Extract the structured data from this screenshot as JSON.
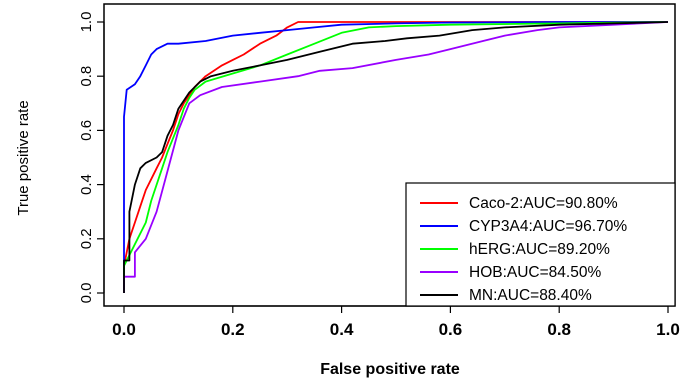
{
  "chart_data": {
    "type": "line",
    "title": "",
    "xlabel": "False positive rate",
    "ylabel": "True positive rate",
    "xlim": [
      0,
      1
    ],
    "ylim": [
      0,
      1
    ],
    "x_ticks": [
      "0.0",
      "0.2",
      "0.4",
      "0.6",
      "0.8",
      "1.0"
    ],
    "y_ticks": [
      "0.0",
      "0.2",
      "0.4",
      "0.6",
      "0.8",
      "1.0"
    ],
    "grid": false,
    "legend_position": "bottom-right",
    "series": [
      {
        "name": "Caco-2:AUC=90.80%",
        "color": "#ff0000",
        "points": [
          [
            0,
            0
          ],
          [
            0,
            0.1
          ],
          [
            0.01,
            0.2
          ],
          [
            0.02,
            0.26
          ],
          [
            0.03,
            0.32
          ],
          [
            0.04,
            0.38
          ],
          [
            0.05,
            0.42
          ],
          [
            0.06,
            0.46
          ],
          [
            0.07,
            0.5
          ],
          [
            0.08,
            0.55
          ],
          [
            0.09,
            0.6
          ],
          [
            0.1,
            0.66
          ],
          [
            0.11,
            0.7
          ],
          [
            0.12,
            0.73
          ],
          [
            0.13,
            0.76
          ],
          [
            0.15,
            0.8
          ],
          [
            0.18,
            0.84
          ],
          [
            0.2,
            0.86
          ],
          [
            0.22,
            0.88
          ],
          [
            0.25,
            0.92
          ],
          [
            0.28,
            0.95
          ],
          [
            0.3,
            0.98
          ],
          [
            0.32,
            1.0
          ],
          [
            0.6,
            1.0
          ],
          [
            1.0,
            1.0
          ]
        ]
      },
      {
        "name": "CYP3A4:AUC=96.70%",
        "color": "#0000ff",
        "points": [
          [
            0,
            0
          ],
          [
            0,
            0.65
          ],
          [
            0.005,
            0.75
          ],
          [
            0.02,
            0.77
          ],
          [
            0.03,
            0.8
          ],
          [
            0.04,
            0.84
          ],
          [
            0.05,
            0.88
          ],
          [
            0.06,
            0.9
          ],
          [
            0.08,
            0.92
          ],
          [
            0.1,
            0.92
          ],
          [
            0.15,
            0.93
          ],
          [
            0.2,
            0.95
          ],
          [
            0.25,
            0.96
          ],
          [
            0.3,
            0.97
          ],
          [
            0.35,
            0.98
          ],
          [
            0.4,
            0.99
          ],
          [
            0.5,
            0.995
          ],
          [
            0.6,
            0.998
          ],
          [
            0.8,
            1.0
          ],
          [
            1.0,
            1.0
          ]
        ]
      },
      {
        "name": "hERG:AUC=89.20%",
        "color": "#00ff00",
        "points": [
          [
            0,
            0
          ],
          [
            0,
            0.1
          ],
          [
            0.02,
            0.18
          ],
          [
            0.04,
            0.26
          ],
          [
            0.05,
            0.34
          ],
          [
            0.07,
            0.46
          ],
          [
            0.08,
            0.52
          ],
          [
            0.1,
            0.62
          ],
          [
            0.11,
            0.68
          ],
          [
            0.12,
            0.72
          ],
          [
            0.13,
            0.75
          ],
          [
            0.15,
            0.78
          ],
          [
            0.2,
            0.81
          ],
          [
            0.25,
            0.84
          ],
          [
            0.3,
            0.88
          ],
          [
            0.35,
            0.92
          ],
          [
            0.4,
            0.96
          ],
          [
            0.45,
            0.98
          ],
          [
            0.5,
            0.985
          ],
          [
            0.6,
            0.99
          ],
          [
            0.8,
            0.995
          ],
          [
            1.0,
            1.0
          ]
        ]
      },
      {
        "name": "HOB:AUC=84.50%",
        "color": "#9900ff",
        "points": [
          [
            0,
            0
          ],
          [
            0,
            0.06
          ],
          [
            0.02,
            0.06
          ],
          [
            0.02,
            0.15
          ],
          [
            0.04,
            0.2
          ],
          [
            0.06,
            0.3
          ],
          [
            0.08,
            0.45
          ],
          [
            0.1,
            0.6
          ],
          [
            0.12,
            0.7
          ],
          [
            0.14,
            0.73
          ],
          [
            0.18,
            0.76
          ],
          [
            0.25,
            0.78
          ],
          [
            0.32,
            0.8
          ],
          [
            0.36,
            0.82
          ],
          [
            0.42,
            0.83
          ],
          [
            0.5,
            0.86
          ],
          [
            0.56,
            0.88
          ],
          [
            0.6,
            0.9
          ],
          [
            0.66,
            0.93
          ],
          [
            0.7,
            0.95
          ],
          [
            0.76,
            0.97
          ],
          [
            0.8,
            0.98
          ],
          [
            0.9,
            0.99
          ],
          [
            1.0,
            1.0
          ]
        ]
      },
      {
        "name": "MN:AUC=88.40%",
        "color": "#000000",
        "points": [
          [
            0,
            0
          ],
          [
            0,
            0.12
          ],
          [
            0.01,
            0.12
          ],
          [
            0.01,
            0.3
          ],
          [
            0.02,
            0.4
          ],
          [
            0.03,
            0.46
          ],
          [
            0.04,
            0.48
          ],
          [
            0.06,
            0.5
          ],
          [
            0.07,
            0.52
          ],
          [
            0.08,
            0.58
          ],
          [
            0.09,
            0.62
          ],
          [
            0.1,
            0.68
          ],
          [
            0.12,
            0.74
          ],
          [
            0.14,
            0.78
          ],
          [
            0.16,
            0.8
          ],
          [
            0.2,
            0.82
          ],
          [
            0.25,
            0.84
          ],
          [
            0.3,
            0.86
          ],
          [
            0.36,
            0.89
          ],
          [
            0.42,
            0.92
          ],
          [
            0.48,
            0.93
          ],
          [
            0.52,
            0.94
          ],
          [
            0.58,
            0.95
          ],
          [
            0.64,
            0.97
          ],
          [
            0.7,
            0.98
          ],
          [
            0.8,
            0.99
          ],
          [
            1.0,
            1.0
          ]
        ]
      }
    ]
  }
}
